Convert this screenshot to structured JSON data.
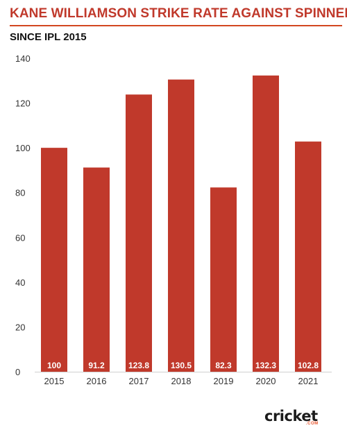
{
  "chart_data": {
    "type": "bar",
    "title": "KANE WILLIAMSON STRIKE RATE AGAINST SPINNERS",
    "subtitle": "SINCE IPL 2015",
    "categories": [
      "2015",
      "2016",
      "2017",
      "2018",
      "2019",
      "2020",
      "2021"
    ],
    "values": [
      100,
      91.2,
      123.8,
      130.5,
      82.3,
      132.3,
      102.8
    ],
    "data_labels": [
      "100",
      "91.2",
      "123.8",
      "130.5",
      "82.3",
      "132.3",
      "102.8"
    ],
    "ylim": [
      0,
      140
    ],
    "yticks": [
      0,
      20,
      40,
      60,
      80,
      100,
      120,
      140
    ],
    "xlabel": "",
    "ylabel": "",
    "grid": false,
    "bar_color": "#c0392b",
    "label_color": "#ffffff"
  },
  "brand": {
    "logo_text": "cricket",
    "logo_sub": ".COM",
    "accent": "#e8532a"
  }
}
